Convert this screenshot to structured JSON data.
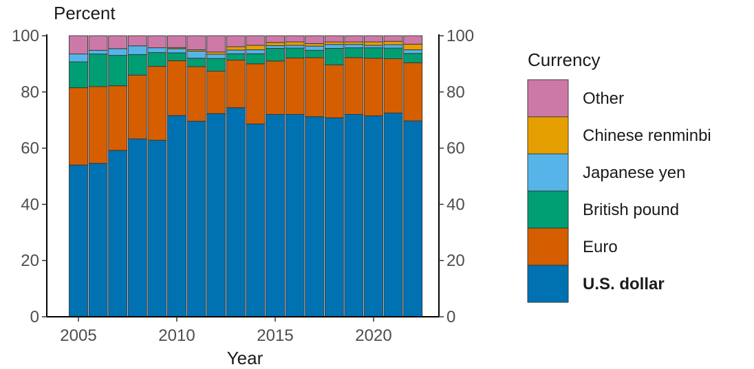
{
  "chart_data": {
    "type": "bar",
    "stacked": true,
    "ylabel": "Percent",
    "xlabel": "Year",
    "ylim": [
      0,
      100
    ],
    "yticks": [
      0,
      20,
      40,
      60,
      80,
      100
    ],
    "xtick_labels": [
      "2005",
      "2010",
      "2015",
      "2020"
    ],
    "right_axis": true,
    "legend_title": "Currency",
    "legend_placement": "right",
    "categories": [
      2005,
      2006,
      2007,
      2008,
      2009,
      2010,
      2011,
      2012,
      2013,
      2014,
      2015,
      2016,
      2017,
      2018,
      2019,
      2020,
      2021,
      2022
    ],
    "series": [
      {
        "name": "U.S. dollar",
        "color": "#0072B2",
        "bold": true,
        "values": [
          54,
          54.6,
          59.2,
          63.3,
          62.8,
          71.6,
          69.6,
          72.3,
          74.4,
          68.6,
          72,
          72,
          71.2,
          70.8,
          72,
          71.5,
          72.5,
          69.7
        ]
      },
      {
        "name": "Euro",
        "color": "#D55E00",
        "values": [
          27.5,
          27.3,
          23,
          22.7,
          26.3,
          19.5,
          19.4,
          15.1,
          16.9,
          21.4,
          19,
          20.1,
          21,
          18.8,
          20.2,
          20.5,
          19.3,
          20.7
        ]
      },
      {
        "name": "British pound",
        "color": "#009E73",
        "values": [
          9.2,
          11.6,
          10.8,
          7.3,
          4.9,
          2.8,
          3,
          4.5,
          2.3,
          3.6,
          4.5,
          3.5,
          2.6,
          5.9,
          3.5,
          3.7,
          3.8,
          3.3
        ]
      },
      {
        "name": "Japanese yen",
        "color": "#56B4E9",
        "values": [
          2.8,
          1.3,
          2.4,
          3.1,
          1.7,
          1.5,
          2.5,
          1.5,
          1.3,
          1.4,
          1,
          1,
          1.5,
          1.4,
          1.2,
          0.9,
          1.2,
          1.3
        ]
      },
      {
        "name": "Chinese renminbi",
        "color": "#E69F00",
        "values": [
          0,
          0,
          0,
          0,
          0,
          0.4,
          0.5,
          0.8,
          1.2,
          1.6,
          1.1,
          1.2,
          0.9,
          0.9,
          0.9,
          1.2,
          1.2,
          2
        ]
      },
      {
        "name": "Other",
        "color": "#CC79A7",
        "values": [
          6.5,
          5.2,
          4.6,
          3.6,
          4.3,
          4.2,
          5,
          5.8,
          3.9,
          3.4,
          2.4,
          2.2,
          2.8,
          2.2,
          2.2,
          2.2,
          2,
          3
        ]
      }
    ],
    "legend_order": [
      "Other",
      "Chinese renminbi",
      "Japanese yen",
      "British pound",
      "Euro",
      "U.S. dollar"
    ]
  }
}
